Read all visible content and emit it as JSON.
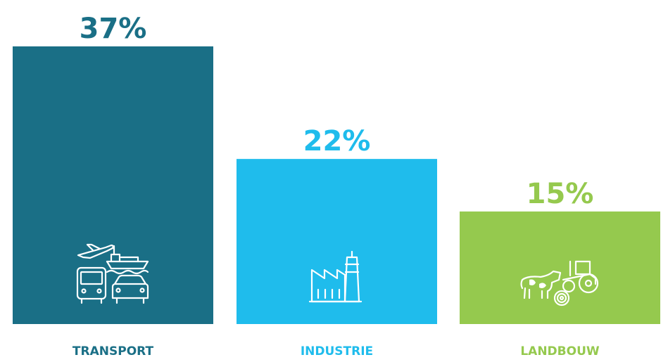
{
  "chart_data": {
    "type": "bar",
    "categories": [
      "TRANSPORT",
      "INDUSTRIE",
      "LANDBOUW"
    ],
    "values": [
      37,
      22,
      15
    ],
    "value_labels": [
      "37%",
      "22%",
      "15%"
    ],
    "ylim": [
      0,
      37
    ],
    "grid": false,
    "colors": [
      "#1a6f86",
      "#1fbcec",
      "#95c94e"
    ],
    "icons": [
      "transport-icon",
      "factory-icon",
      "agriculture-icon"
    ]
  }
}
